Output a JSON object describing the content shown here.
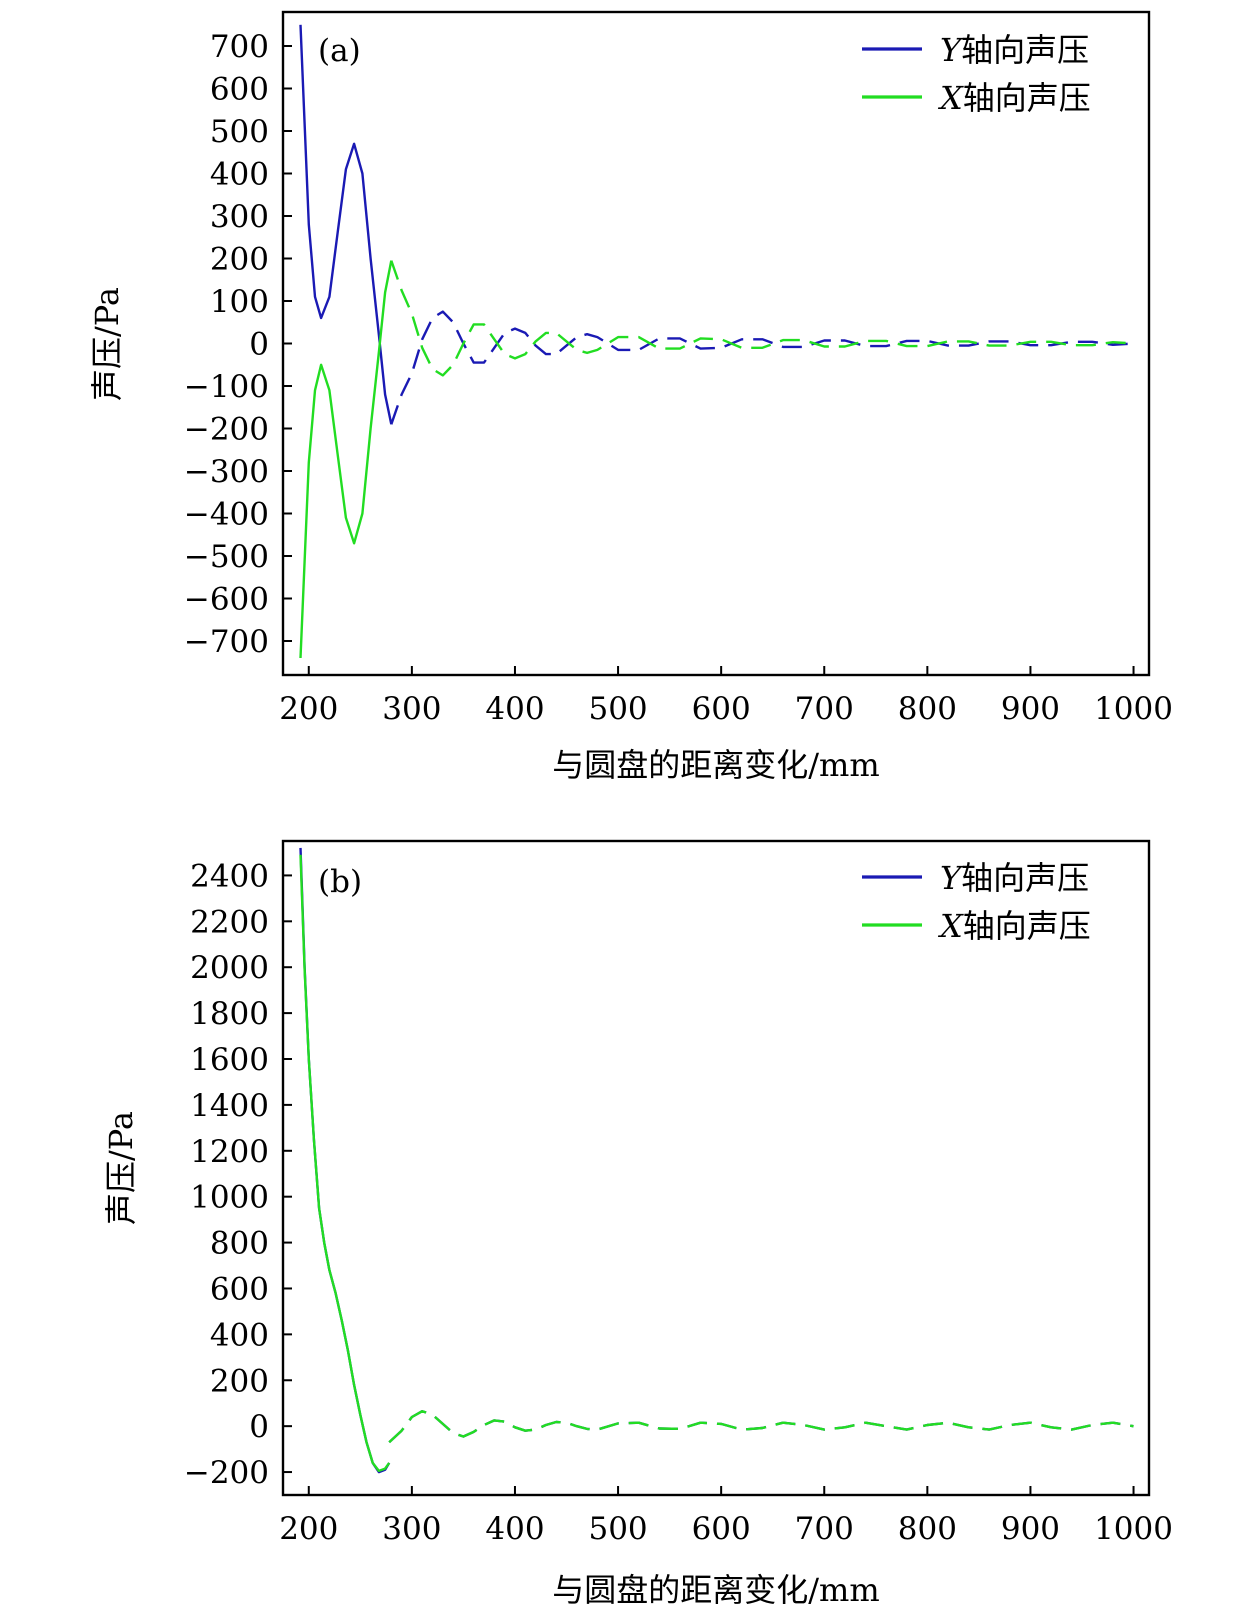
{
  "chart_data": [
    {
      "panel_label": "(a)",
      "type": "line",
      "xlabel": "与圆盘的距离变化/mm",
      "ylabel": "声压/Pa",
      "xlim": [
        175,
        1015
      ],
      "ylim": [
        -780,
        780
      ],
      "xticks": [
        "200",
        "300",
        "400",
        "500",
        "600",
        "700",
        "800",
        "900",
        "1000"
      ],
      "yticks": [
        "700",
        "600",
        "500",
        "400",
        "300",
        "200",
        "100",
        "0",
        "−100",
        "−200",
        "−300",
        "−400",
        "−500",
        "−600",
        "−700"
      ],
      "legend_position": "top-right",
      "series": [
        {
          "name": "Y轴向声压",
          "legend_prefix": "Y",
          "legend_suffix": "轴向声压",
          "color": "#1a1ab4",
          "segments": [
            {
              "style": "solid",
              "x": [
                192,
                200,
                206,
                212,
                220,
                228,
                236,
                244,
                252,
                260,
                268,
                274,
                280
              ],
              "y": [
                750,
                280,
                110,
                60,
                110,
                260,
                410,
                470,
                400,
                200,
                20,
                -120,
                -190
              ]
            },
            {
              "style": "dashed",
              "x": [
                280,
                290,
                300,
                310,
                320,
                330,
                340,
                350,
                360,
                370,
                380,
                390,
                400,
                410,
                420,
                430,
                440,
                450,
                460,
                470,
                480,
                490,
                500,
                520,
                540,
                560,
                580,
                600,
                620,
                640,
                660,
                680,
                700,
                720,
                740,
                760,
                780,
                800,
                820,
                840,
                860,
                880,
                900,
                920,
                940,
                960,
                980,
                1000
              ],
              "y": [
                -190,
                -120,
                -70,
                10,
                60,
                75,
                50,
                0,
                -45,
                -45,
                -10,
                25,
                35,
                25,
                -5,
                -25,
                -25,
                -5,
                15,
                22,
                15,
                0,
                -15,
                -15,
                12,
                12,
                -12,
                -10,
                10,
                10,
                -8,
                -8,
                7,
                7,
                -6,
                -6,
                6,
                6,
                -5,
                -5,
                5,
                5,
                -4,
                -4,
                4,
                4,
                -3,
                0
              ]
            }
          ]
        },
        {
          "name": "X轴向声压",
          "legend_prefix": "X",
          "legend_suffix": "轴向声压",
          "color": "#22dd22",
          "segments": [
            {
              "style": "solid",
              "x": [
                192,
                200,
                206,
                212,
                220,
                228,
                236,
                244,
                252,
                260,
                268,
                274,
                280
              ],
              "y": [
                -740,
                -280,
                -110,
                -50,
                -110,
                -260,
                -410,
                -470,
                -400,
                -200,
                -20,
                120,
                195
              ]
            },
            {
              "style": "dashed",
              "x": [
                280,
                290,
                300,
                310,
                320,
                330,
                340,
                350,
                360,
                370,
                380,
                390,
                400,
                410,
                420,
                430,
                440,
                450,
                460,
                470,
                480,
                490,
                500,
                520,
                540,
                560,
                580,
                600,
                620,
                640,
                660,
                680,
                700,
                720,
                740,
                760,
                780,
                800,
                820,
                840,
                860,
                880,
                900,
                920,
                940,
                960,
                980,
                1000
              ],
              "y": [
                195,
                125,
                70,
                -10,
                -60,
                -75,
                -50,
                0,
                45,
                45,
                10,
                -25,
                -35,
                -25,
                5,
                25,
                25,
                5,
                -15,
                -22,
                -15,
                0,
                15,
                15,
                -12,
                -12,
                12,
                10,
                -10,
                -10,
                8,
                8,
                -7,
                -7,
                6,
                6,
                -6,
                -6,
                5,
                5,
                -5,
                -5,
                4,
                4,
                -4,
                -4,
                3,
                0
              ]
            }
          ]
        }
      ]
    },
    {
      "panel_label": "(b)",
      "type": "line",
      "xlabel": "与圆盘的距离变化/mm",
      "ylabel": "声压/Pa",
      "xlim": [
        175,
        1015
      ],
      "ylim": [
        -300,
        2550
      ],
      "xticks": [
        "200",
        "300",
        "400",
        "500",
        "600",
        "700",
        "800",
        "900",
        "1000"
      ],
      "yticks": [
        "2400",
        "2200",
        "2000",
        "1800",
        "1600",
        "1400",
        "1200",
        "1000",
        "800",
        "600",
        "400",
        "200",
        "0",
        "−200"
      ],
      "legend_position": "top-right",
      "series": [
        {
          "name": "Y轴向声压",
          "legend_prefix": "Y",
          "legend_suffix": "轴向声压",
          "color": "#1a1ab4",
          "segments": [
            {
              "style": "solid",
              "x": [
                192,
                196,
                200,
                205,
                210,
                215,
                220,
                226,
                232,
                238,
                244,
                250,
                256,
                262,
                268,
                274,
                278
              ],
              "y": [
                2520,
                2000,
                1600,
                1250,
                950,
                800,
                680,
                580,
                460,
                330,
                180,
                50,
                -70,
                -160,
                -200,
                -190,
                -160
              ]
            },
            {
              "style": "dashed",
              "x": [
                278,
                290,
                300,
                310,
                320,
                330,
                340,
                350,
                360,
                370,
                380,
                390,
                400,
                410,
                420,
                430,
                440,
                450,
                460,
                470,
                480,
                500,
                520,
                540,
                560,
                580,
                600,
                620,
                640,
                660,
                680,
                700,
                720,
                740,
                760,
                780,
                800,
                820,
                840,
                860,
                880,
                900,
                920,
                940,
                960,
                980,
                1000
              ],
              "y": [
                -70,
                -20,
                40,
                65,
                50,
                10,
                -30,
                -45,
                -25,
                5,
                25,
                20,
                -5,
                -20,
                -15,
                5,
                18,
                15,
                0,
                -12,
                -15,
                12,
                15,
                -10,
                -12,
                15,
                10,
                -15,
                -8,
                15,
                5,
                -15,
                -5,
                15,
                0,
                -15,
                5,
                15,
                -5,
                -15,
                5,
                15,
                -5,
                -15,
                5,
                15,
                0
              ]
            }
          ]
        },
        {
          "name": "X轴向声压",
          "legend_prefix": "X",
          "legend_suffix": "轴向声压",
          "color": "#22dd22",
          "segments": [
            {
              "style": "solid",
              "x": [
                192,
                196,
                200,
                205,
                210,
                215,
                220,
                226,
                232,
                238,
                244,
                250,
                256,
                262,
                268,
                274,
                278
              ],
              "y": [
                2490,
                1990,
                1600,
                1250,
                950,
                800,
                680,
                580,
                460,
                330,
                180,
                50,
                -70,
                -160,
                -195,
                -185,
                -160
              ]
            },
            {
              "style": "dashed",
              "x": [
                278,
                290,
                300,
                310,
                320,
                330,
                340,
                350,
                360,
                370,
                380,
                390,
                400,
                410,
                420,
                430,
                440,
                450,
                460,
                470,
                480,
                500,
                520,
                540,
                560,
                580,
                600,
                620,
                640,
                660,
                680,
                700,
                720,
                740,
                760,
                780,
                800,
                820,
                840,
                860,
                880,
                900,
                920,
                940,
                960,
                980,
                1000
              ],
              "y": [
                -70,
                -20,
                40,
                65,
                50,
                10,
                -30,
                -45,
                -25,
                5,
                25,
                20,
                -5,
                -20,
                -15,
                5,
                18,
                15,
                0,
                -12,
                -15,
                12,
                15,
                -10,
                -12,
                15,
                10,
                -15,
                -8,
                15,
                5,
                -15,
                -5,
                15,
                0,
                -15,
                5,
                15,
                -5,
                -15,
                5,
                15,
                -5,
                -15,
                5,
                15,
                0
              ]
            }
          ]
        }
      ]
    }
  ]
}
